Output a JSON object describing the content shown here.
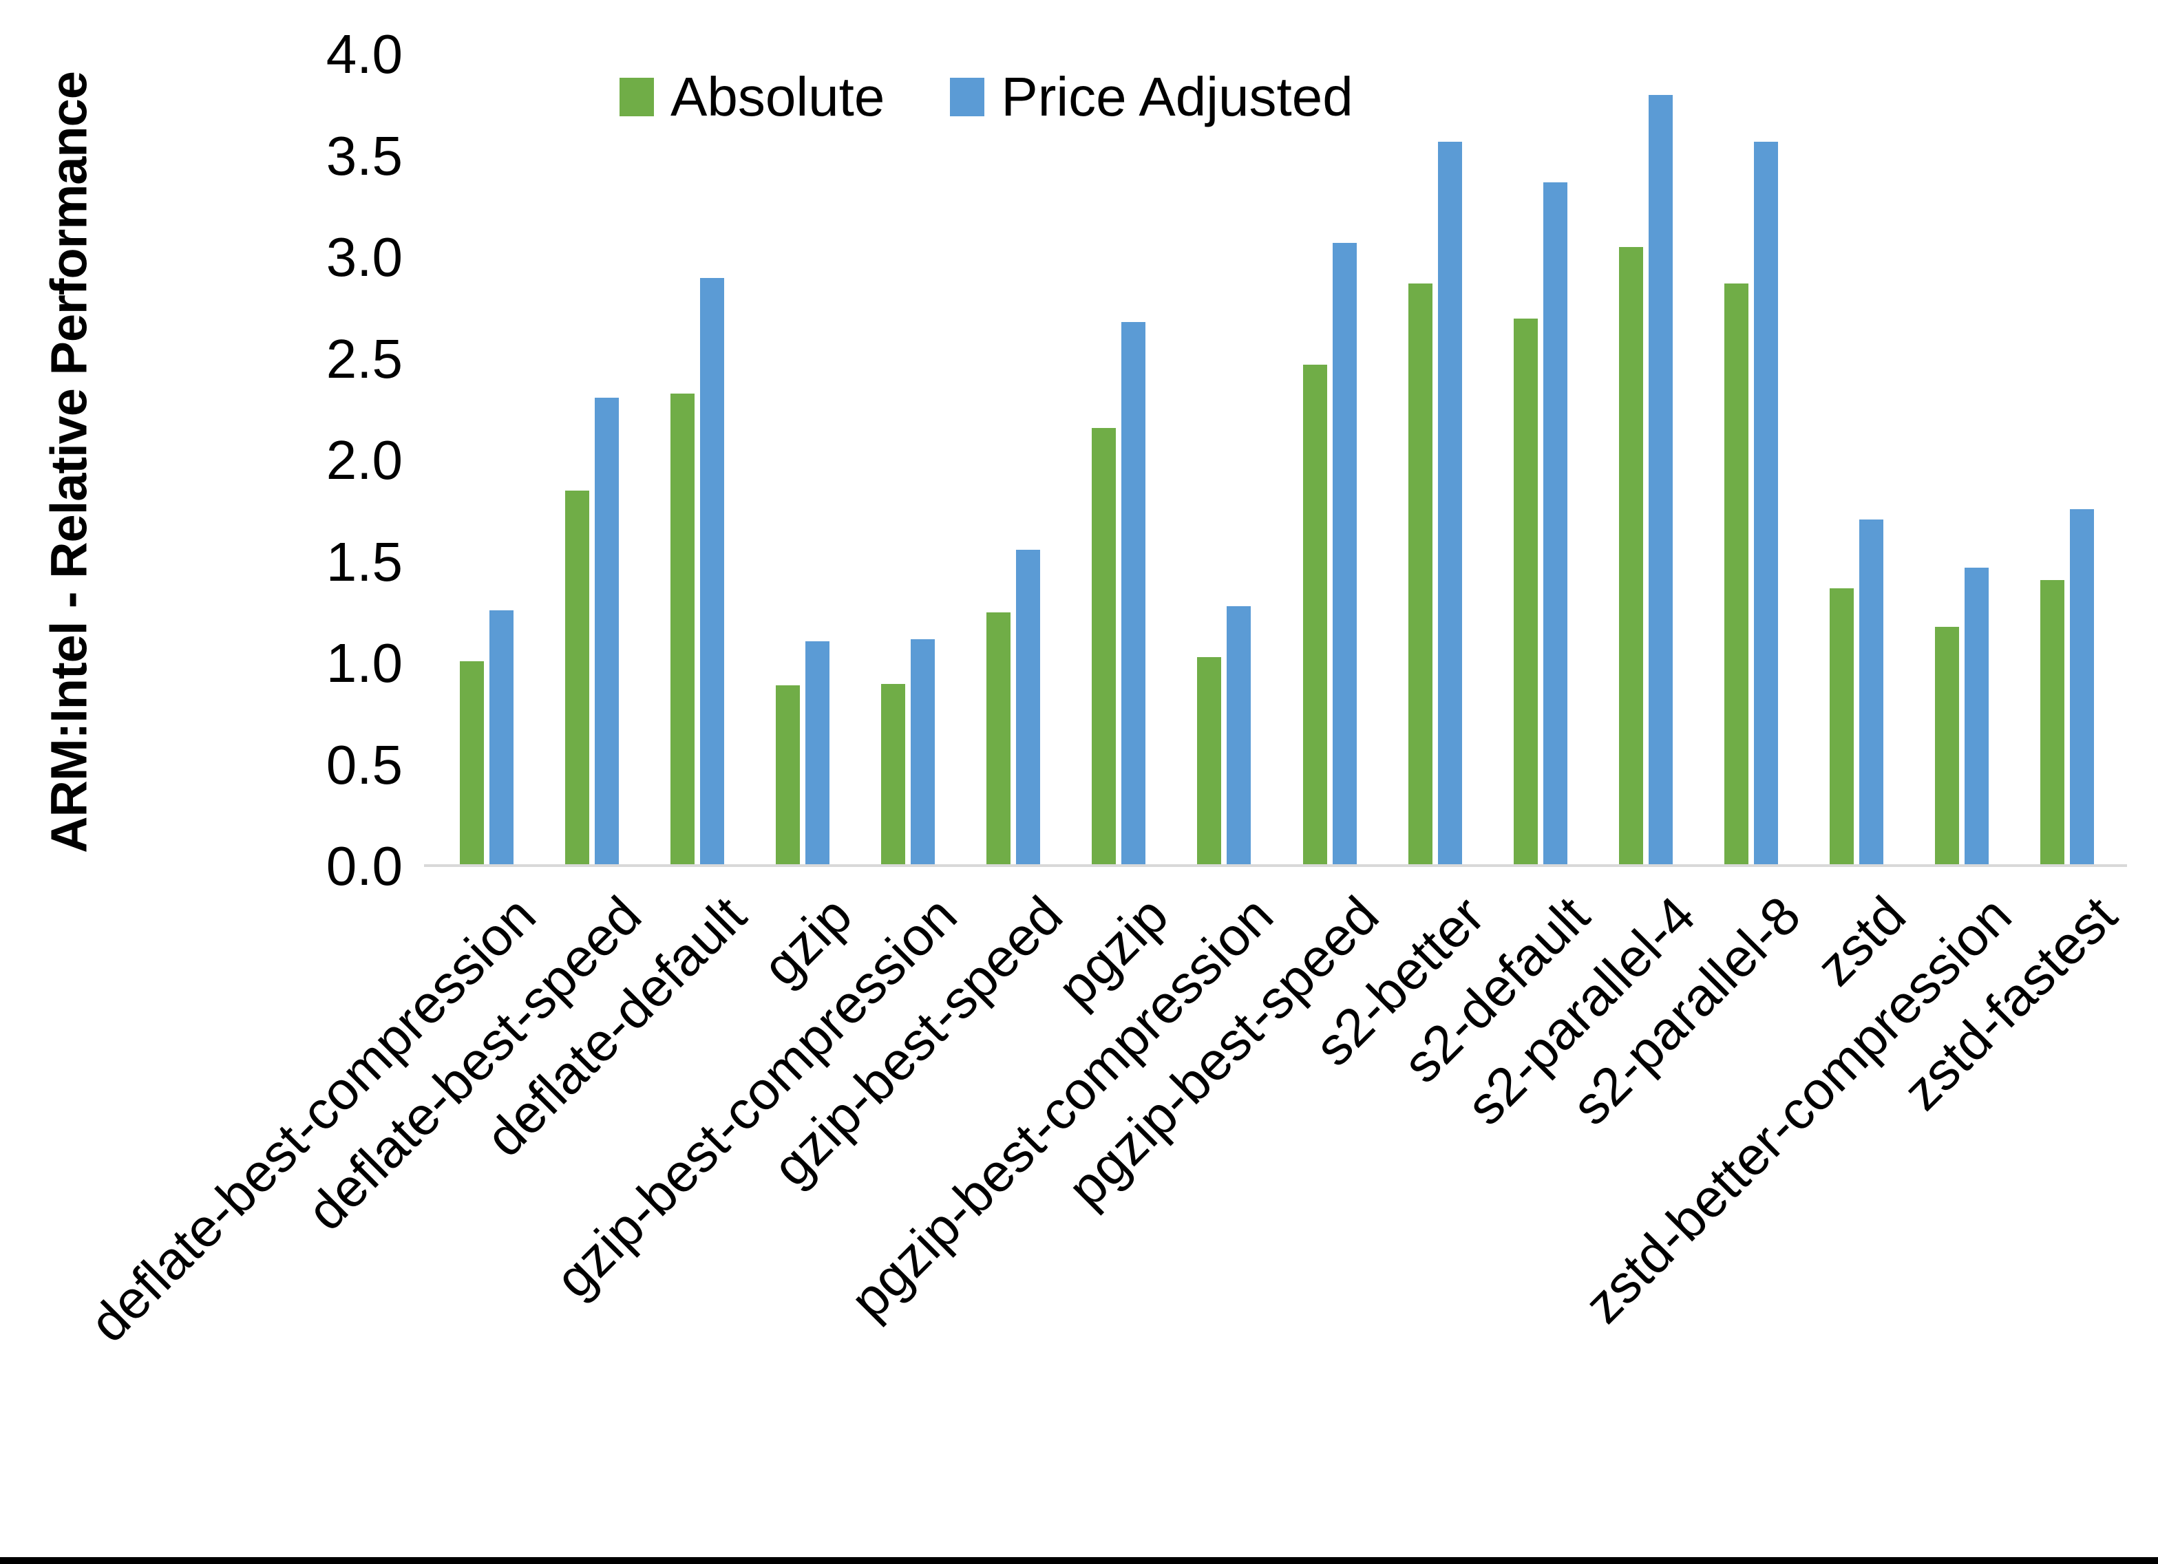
{
  "figure": {
    "background": "#ffffff",
    "bottom_border_color": "#000000"
  },
  "chart_data": {
    "type": "bar",
    "title": "",
    "xlabel": "",
    "ylabel": "ARM:Intel - Relative Performance",
    "ylim": [
      0.0,
      4.0
    ],
    "ytick_step": 0.5,
    "ytick_labels": [
      "0.0",
      "0.5",
      "1.0",
      "1.5",
      "2.0",
      "2.5",
      "3.0",
      "3.5",
      "4.0"
    ],
    "grid": false,
    "legend_position": "top-center",
    "axis_line_color": "#d9d9d9",
    "categories": [
      "deflate-best-compression",
      "deflate-best-speed",
      "deflate-default",
      "gzip",
      "gzip-best-compression",
      "gzip-best-speed",
      "pgzip",
      "pgzip-best-compression",
      "pgzip-best-speed",
      "s2-better",
      "s2-default",
      "s2-parallel-4",
      "s2-parallel-8",
      "zstd",
      "zstd-better-compression",
      "zstd-fastest"
    ],
    "series": [
      {
        "name": "Absolute",
        "color": "#70AD47",
        "values": [
          1.01,
          1.85,
          2.33,
          0.89,
          0.9,
          1.25,
          2.16,
          1.03,
          2.47,
          2.87,
          2.7,
          3.05,
          2.87,
          1.37,
          1.18,
          1.41
        ]
      },
      {
        "name": "Price Adjusted",
        "color": "#5B9BD5",
        "values": [
          1.26,
          2.31,
          2.9,
          1.11,
          1.12,
          1.56,
          2.68,
          1.28,
          3.07,
          3.57,
          3.37,
          3.8,
          3.57,
          1.71,
          1.47,
          1.76
        ]
      }
    ]
  }
}
